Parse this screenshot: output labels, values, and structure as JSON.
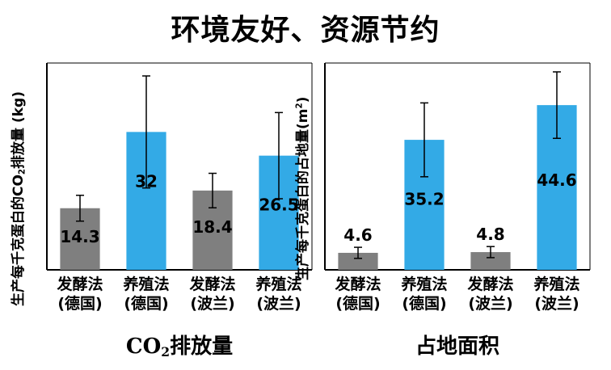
{
  "title": "环境友好、资源节约",
  "colors": {
    "german": "#7f7f7f",
    "polish": "#33aae6",
    "axis": "#000000"
  },
  "chart_data": [
    {
      "type": "bar",
      "ylabel_prefix": "生产每千克蛋白的CO",
      "ylabel_sub": "2",
      "ylabel_suffix": "排放量 (kg)",
      "caption_prefix": "CO",
      "caption_sub": "2",
      "caption_suffix": "排放量",
      "categories": [
        [
          "发酵法",
          "(德国)"
        ],
        [
          "养殖法",
          "(德国)"
        ],
        [
          "发酵法",
          "(波兰)"
        ],
        [
          "养殖法",
          "(波兰)"
        ]
      ],
      "values": [
        14.3,
        32,
        18.4,
        26.5
      ],
      "value_labels": [
        "14.3",
        "32",
        "18.4",
        "26.5"
      ],
      "error": [
        3,
        13,
        4,
        10
      ],
      "bar_colors": [
        "#7f7f7f",
        "#33aae6",
        "#7f7f7f",
        "#33aae6"
      ],
      "ylim": [
        0,
        48
      ],
      "label_position": "inside"
    },
    {
      "type": "bar",
      "ylabel_prefix": "生产每千克蛋白的占地量(m",
      "ylabel_sup": "2",
      "ylabel_suffix": ")",
      "caption": "占地面积",
      "categories": [
        [
          "发酵法",
          "(德国)"
        ],
        [
          "养殖法",
          "(德国)"
        ],
        [
          "发酵法",
          "(波兰)"
        ],
        [
          "养殖法",
          "(波兰)"
        ]
      ],
      "values": [
        4.6,
        35.2,
        4.8,
        44.6
      ],
      "value_labels": [
        "4.6",
        "35.2",
        "4.8",
        "44.6"
      ],
      "error": [
        1.5,
        10,
        1.5,
        9
      ],
      "bar_colors": [
        "#7f7f7f",
        "#33aae6",
        "#7f7f7f",
        "#33aae6"
      ],
      "ylim": [
        0,
        56
      ],
      "label_position": "mixed"
    }
  ]
}
